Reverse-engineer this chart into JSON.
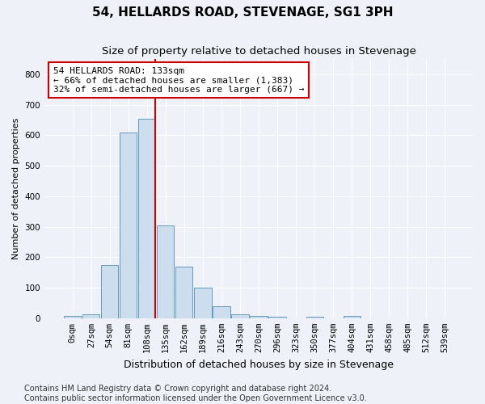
{
  "title": "54, HELLARDS ROAD, STEVENAGE, SG1 3PH",
  "subtitle": "Size of property relative to detached houses in Stevenage",
  "xlabel": "Distribution of detached houses by size in Stevenage",
  "ylabel": "Number of detached properties",
  "bin_labels": [
    "0sqm",
    "27sqm",
    "54sqm",
    "81sqm",
    "108sqm",
    "135sqm",
    "162sqm",
    "189sqm",
    "216sqm",
    "243sqm",
    "270sqm",
    "296sqm",
    "323sqm",
    "350sqm",
    "377sqm",
    "404sqm",
    "431sqm",
    "458sqm",
    "485sqm",
    "512sqm",
    "539sqm"
  ],
  "bar_values": [
    8,
    14,
    175,
    610,
    655,
    305,
    170,
    100,
    40,
    14,
    8,
    5,
    0,
    5,
    0,
    8,
    0,
    0,
    0,
    0,
    0
  ],
  "bar_color": "#ccdded",
  "bar_edge_color": "#6699bb",
  "vline_color": "#cc0000",
  "annotation_text": "54 HELLARDS ROAD: 133sqm\n← 66% of detached houses are smaller (1,383)\n32% of semi-detached houses are larger (667) →",
  "annotation_box_color": "#ffffff",
  "annotation_box_edge": "#cc0000",
  "ylim": [
    0,
    850
  ],
  "yticks": [
    0,
    100,
    200,
    300,
    400,
    500,
    600,
    700,
    800
  ],
  "footer1": "Contains HM Land Registry data © Crown copyright and database right 2024.",
  "footer2": "Contains public sector information licensed under the Open Government Licence v3.0.",
  "background_color": "#eef2f8",
  "grid_color": "#ffffff",
  "title_fontsize": 11,
  "subtitle_fontsize": 9.5,
  "xlabel_fontsize": 9,
  "ylabel_fontsize": 8,
  "tick_fontsize": 7.5,
  "annotation_fontsize": 8,
  "footer_fontsize": 7
}
